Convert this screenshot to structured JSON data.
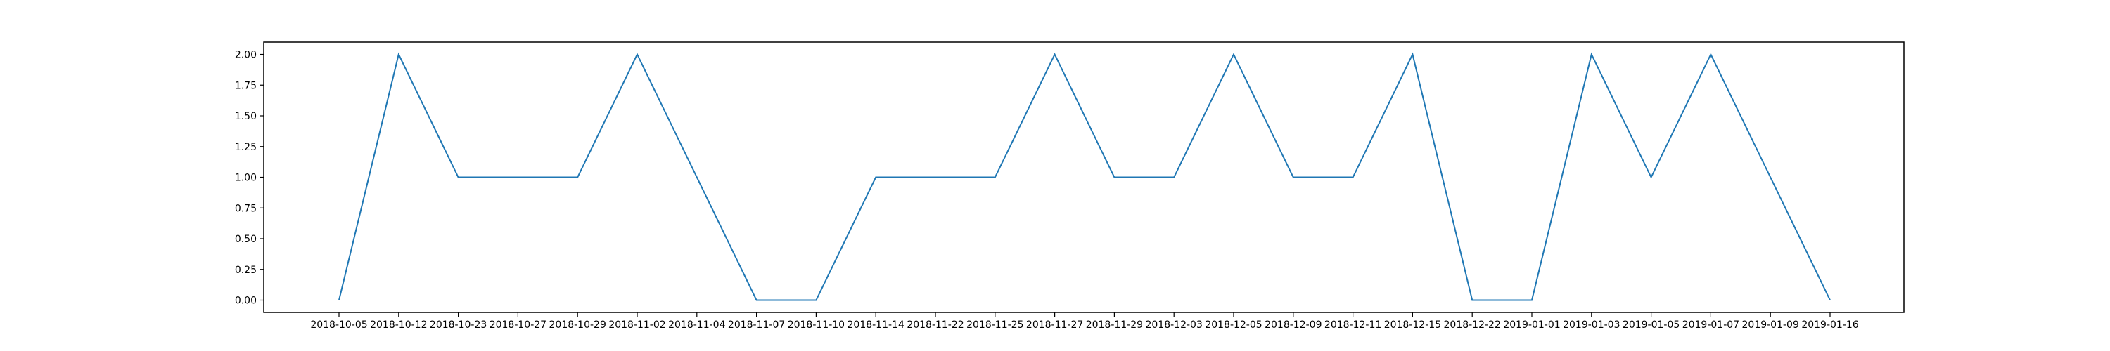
{
  "chart_data": {
    "type": "line",
    "title": "",
    "xlabel": "",
    "ylabel": "",
    "x": [
      "2018-10-05",
      "2018-10-12",
      "2018-10-23",
      "2018-10-27",
      "2018-10-29",
      "2018-11-02",
      "2018-11-04",
      "2018-11-07",
      "2018-11-10",
      "2018-11-14",
      "2018-11-22",
      "2018-11-25",
      "2018-11-27",
      "2018-11-29",
      "2018-12-03",
      "2018-12-05",
      "2018-12-09",
      "2018-12-11",
      "2018-12-15",
      "2018-12-22",
      "2019-01-01",
      "2019-01-03",
      "2019-01-05",
      "2019-01-07",
      "2019-01-09",
      "2019-01-16"
    ],
    "series": [
      {
        "values": [
          0,
          2,
          1,
          1,
          1,
          2,
          1,
          0,
          0,
          1,
          1,
          1,
          2,
          1,
          1,
          2,
          1,
          1,
          2,
          0,
          0,
          2,
          1,
          2,
          1,
          0
        ],
        "color": "#1f77b4"
      }
    ],
    "y_ticks": [
      "0.00",
      "0.25",
      "0.50",
      "0.75",
      "1.00",
      "1.25",
      "1.50",
      "1.75",
      "2.00"
    ],
    "ylim": [
      -0.1,
      2.1
    ],
    "grid": false,
    "legend": "none"
  }
}
